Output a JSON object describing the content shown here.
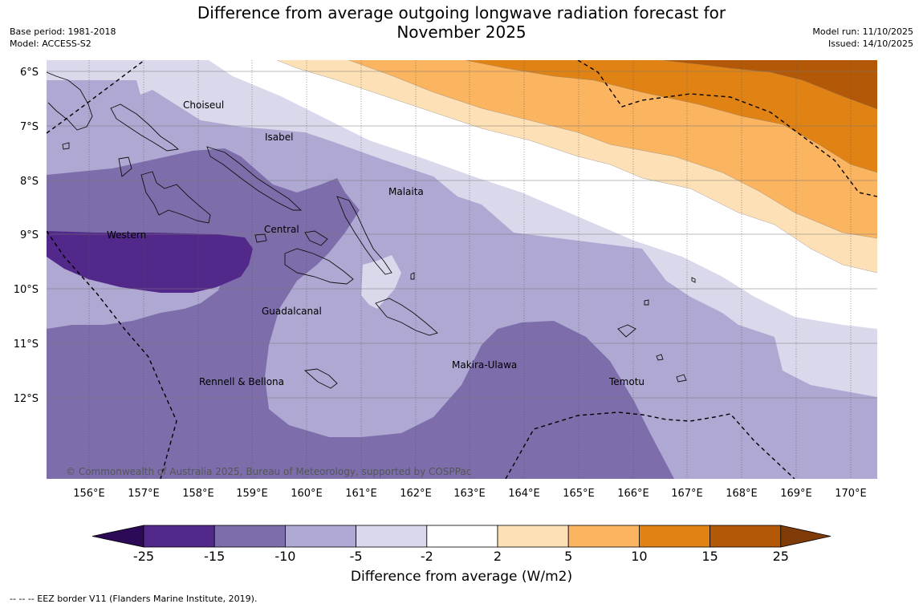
{
  "header": {
    "title_line1": "Difference from average outgoing longwave radiation forecast for",
    "title_line2": "November 2025",
    "base_period": "Base period: 1981-2018",
    "model": "Model: ACCESS-S2",
    "model_run": "Model run: 11/10/2025",
    "issued": "Issued: 14/10/2025"
  },
  "map": {
    "lat_labels": [
      "6°S",
      "7°S",
      "8°S",
      "9°S",
      "10°S",
      "11°S",
      "12°S"
    ],
    "lon_labels": [
      "156°E",
      "157°E",
      "158°E",
      "159°E",
      "160°E",
      "161°E",
      "162°E",
      "163°E",
      "164°E",
      "165°E",
      "166°E",
      "167°E",
      "168°E",
      "169°E",
      "170°E"
    ],
    "provinces": [
      "Choiseul",
      "Isabel",
      "Malaita",
      "Western",
      "Central",
      "Guadalcanal",
      "Makira-Ulawa",
      "Rennell & Bellona",
      "Temotu"
    ],
    "copyright": "© Commonwealth of Australia 2025, Bureau of Meteorology, supported by COSPPac"
  },
  "colorbar": {
    "tick_labels": [
      "-25",
      "-15",
      "-10",
      "-5",
      "-2",
      "2",
      "5",
      "10",
      "15",
      "25"
    ],
    "colors": [
      "#2d0a57",
      "#52288a",
      "#7d6eab",
      "#aea8d2",
      "#d9d9eb",
      "#ffffff",
      "#fee0b6",
      "#fbb45f",
      "#e08314",
      "#b35806",
      "#7f3b08"
    ],
    "label": "Difference from average (W/m2)"
  },
  "footer": {
    "eez_note": "--  --  -- EEZ border V11 (Flanders Marine Institute, 2019)."
  }
}
